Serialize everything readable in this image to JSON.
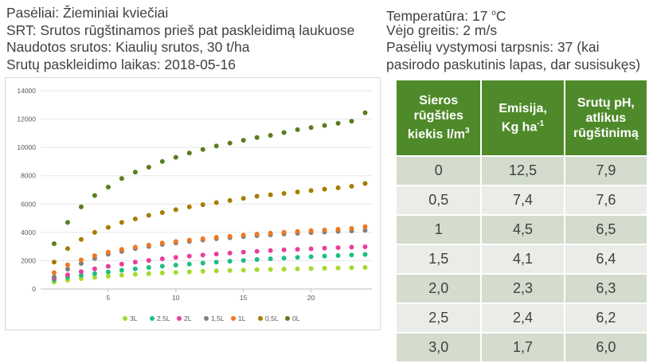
{
  "info": {
    "left": [
      "Pasėliai: Žieminiai kviečiai",
      "SRT: Srutos rūgštinamos prieš pat paskleidimą laukuose",
      "Naudotos srutos: Kiaulių srutos, 30 t/ha",
      "Srutų paskleidimo laikas: 2018-05-16"
    ],
    "right_temp_prefix": "Temperatūra: 17 ",
    "right_temp_sup": "o",
    "right_temp_suffix": "C",
    "right": [
      "Vėjo greitis: 2 m/s",
      "Pasėlių vystymosi tarpsnis: 37 (kai",
      "pasirodo paskutinis lapas, dar susisukęs)"
    ]
  },
  "table": {
    "headers": [
      {
        "lines": [
          "Sieros",
          "rūgšties"
        ],
        "last": "kiekis l/m",
        "sup": "3"
      },
      {
        "lines": [
          "Emisija,"
        ],
        "last": "Kg ha",
        "sup": "-1"
      },
      {
        "lines": [
          "Srutų pH,",
          "atlikus"
        ],
        "last": "rūgštinimą",
        "sup": ""
      }
    ],
    "rows": [
      [
        "0",
        "12,5",
        "7,9"
      ],
      [
        "0,5",
        "7,4",
        "7,6"
      ],
      [
        "1",
        "4,5",
        "6,5"
      ],
      [
        "1,5",
        "4,1",
        "6,4"
      ],
      [
        "2,0",
        "2,3",
        "6,3"
      ],
      [
        "2,5",
        "2,4",
        "6,2"
      ],
      [
        "3,0",
        "1,7",
        "6,0"
      ]
    ]
  },
  "chart_data": {
    "type": "scatter",
    "x": [
      1,
      2,
      3,
      4,
      5,
      6,
      7,
      8,
      9,
      10,
      11,
      12,
      13,
      14,
      15,
      16,
      17,
      18,
      19,
      20,
      21,
      22,
      23,
      24
    ],
    "xticks": [
      5,
      10,
      15,
      20
    ],
    "yticks": [
      0,
      2000,
      4000,
      6000,
      8000,
      10000,
      12000,
      14000
    ],
    "xlim": [
      0,
      24.5
    ],
    "ylim": [
      0,
      14000
    ],
    "grid": "horizontal",
    "legend_position": "bottom",
    "series": [
      {
        "name": "3L",
        "color": "#a6d92f",
        "values": [
          500,
          620,
          730,
          820,
          900,
          970,
          1030,
          1080,
          1130,
          1170,
          1210,
          1250,
          1280,
          1310,
          1330,
          1360,
          1380,
          1400,
          1420,
          1440,
          1460,
          1480,
          1500,
          1520
        ]
      },
      {
        "name": "2,5L",
        "color": "#1fbf80",
        "values": [
          650,
          820,
          960,
          1090,
          1200,
          1320,
          1420,
          1520,
          1610,
          1690,
          1760,
          1830,
          1900,
          1960,
          2020,
          2080,
          2130,
          2180,
          2230,
          2280,
          2320,
          2360,
          2400,
          2440
        ]
      },
      {
        "name": "2L",
        "color": "#e83e9c",
        "values": [
          750,
          1000,
          1220,
          1420,
          1600,
          1760,
          1900,
          2020,
          2130,
          2230,
          2320,
          2400,
          2470,
          2540,
          2600,
          2660,
          2710,
          2760,
          2800,
          2840,
          2880,
          2920,
          2950,
          2980
        ]
      },
      {
        "name": "1,5L",
        "color": "#808080",
        "values": [
          850,
          1400,
          1800,
          2150,
          2450,
          2650,
          2850,
          3000,
          3150,
          3250,
          3350,
          3450,
          3550,
          3620,
          3700,
          3760,
          3820,
          3880,
          3930,
          3980,
          4020,
          4060,
          4100,
          4140
        ]
      },
      {
        "name": "1L",
        "color": "#f07820",
        "values": [
          1150,
          1700,
          2050,
          2350,
          2600,
          2800,
          2950,
          3100,
          3250,
          3350,
          3450,
          3550,
          3650,
          3720,
          3800,
          3870,
          3940,
          4000,
          4060,
          4120,
          4170,
          4220,
          4270,
          4400
        ]
      },
      {
        "name": "0,5L",
        "color": "#a67c00",
        "values": [
          1900,
          2850,
          3500,
          4000,
          4350,
          4700,
          4950,
          5200,
          5400,
          5600,
          5800,
          5950,
          6100,
          6250,
          6400,
          6550,
          6650,
          6750,
          6850,
          6950,
          7050,
          7150,
          7250,
          7450
        ]
      },
      {
        "name": "0L",
        "color": "#5a7d1e",
        "values": [
          3200,
          4700,
          5800,
          6600,
          7200,
          7800,
          8250,
          8600,
          9000,
          9300,
          9600,
          9850,
          10100,
          10300,
          10500,
          10700,
          10850,
          11050,
          11250,
          11400,
          11550,
          11700,
          11850,
          12450
        ]
      }
    ]
  }
}
